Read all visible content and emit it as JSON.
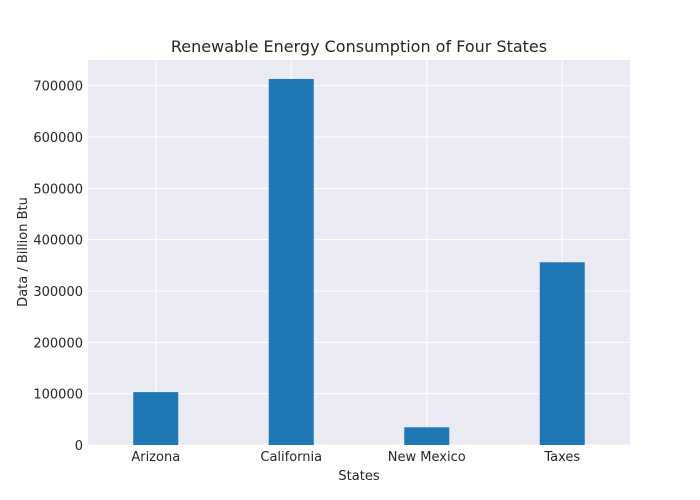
{
  "chart_data": {
    "type": "bar",
    "title": "Renewable Energy Consumption of Four States",
    "xlabel": "States",
    "ylabel": "Data / Billion Btu",
    "categories": [
      "Arizona",
      "California",
      "New Mexico",
      "Taxes"
    ],
    "values": [
      103000,
      713000,
      34500,
      356000
    ],
    "ylim": [
      0,
      750000
    ],
    "yticks": [
      0,
      100000,
      200000,
      300000,
      400000,
      500000,
      600000,
      700000
    ],
    "grid": true,
    "bar_color": "#1f77b4",
    "plot_background": "#eaeaf2",
    "grid_color": "#ffffff"
  }
}
